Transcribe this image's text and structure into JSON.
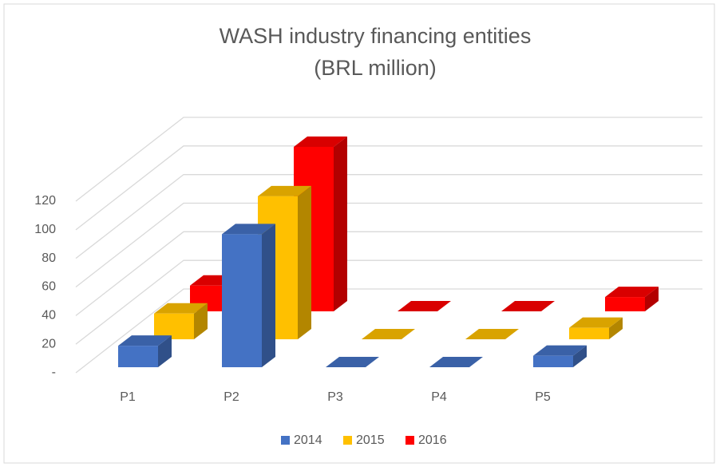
{
  "chart_data": {
    "type": "bar3d",
    "title": [
      "WASH industry financing entities",
      "(BRL million)"
    ],
    "categories": [
      "P1",
      "P2",
      "P3",
      "P4",
      "P5"
    ],
    "series": [
      {
        "name": "2014",
        "color": "#4472c4",
        "values": [
          15,
          93,
          0,
          0,
          8
        ]
      },
      {
        "name": "2015",
        "color": "#ffc000",
        "values": [
          18,
          100,
          0,
          0,
          8
        ]
      },
      {
        "name": "2016",
        "color": "#ff0000",
        "values": [
          18,
          115,
          0,
          0,
          10
        ]
      }
    ],
    "ylim": [
      0,
      120
    ],
    "yticks": [
      {
        "value": 0,
        "label": "-"
      },
      20,
      40,
      60,
      80,
      100,
      120
    ],
    "grid": true,
    "legend": "bottom"
  }
}
